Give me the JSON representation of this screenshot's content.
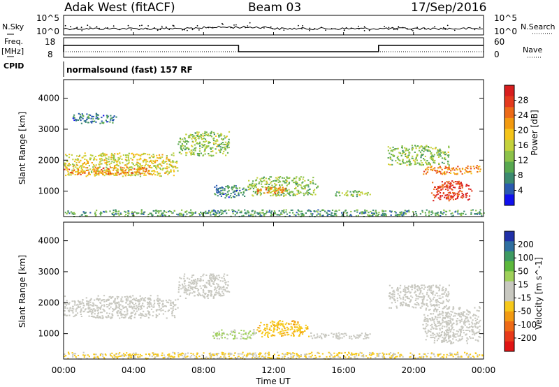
{
  "header": {
    "station": "Adak West (fitACF)",
    "beam": "Beam 03",
    "date": "17/Sep/2016"
  },
  "panels": {
    "nsky": {
      "label": "N.Sky",
      "left_ticks": [
        "10^5",
        "10^0"
      ],
      "right_ticks": [
        "10^5",
        "10^0"
      ],
      "right_label": "N.Search"
    },
    "freq": {
      "label_top": "Freq.",
      "label_unit": "[MHz]",
      "left_ticks": [
        "18",
        "8"
      ],
      "right_ticks": [
        "60",
        "0"
      ],
      "right_label": "Nave"
    },
    "cpid": {
      "label": "CPID",
      "text": "normalsound (fast) 157 RF"
    }
  },
  "colorbars": {
    "power": {
      "label": "Power [dB]",
      "ticks": [
        "28",
        "24",
        "20",
        "16",
        "12",
        "8",
        "4"
      ],
      "colors": [
        "#1010ee",
        "#2a5ab0",
        "#3c8a70",
        "#58a850",
        "#8cc24a",
        "#c4d23c",
        "#f4c41a",
        "#f29a10",
        "#ec6a18",
        "#e43a1e",
        "#d81e1e"
      ]
    },
    "velocity": {
      "label": "Velocity [m s^-1]",
      "ticks": [
        "200",
        "100",
        "50",
        "15",
        "-15",
        "-50",
        "-100",
        "-200"
      ],
      "colors": [
        "#2030a8",
        "#2f6fa0",
        "#3e9a62",
        "#5cb83c",
        "#9fd05a",
        "#c8c8c0",
        "#c8c8c0",
        "#f6c81a",
        "#f29a12",
        "#ee6a16",
        "#e83a1a",
        "#e01414"
      ]
    }
  },
  "chart_data": {
    "type": "heatmap",
    "x_axis": {
      "label": "Time UT",
      "ticks": [
        "00:00",
        "04:00",
        "08:00",
        "12:00",
        "16:00",
        "20:00",
        "00:00"
      ],
      "range_hours": [
        0,
        24
      ]
    },
    "y_axis": {
      "label": "Slant Range [km]",
      "ticks": [
        1000,
        2000,
        3000,
        4000
      ],
      "range": [
        180,
        4600
      ]
    },
    "series": [
      {
        "name": "Power",
        "blobs": [
          {
            "t": [
              0,
              6.5
            ],
            "r": [
              1500,
              2250
            ],
            "value_db": 16
          },
          {
            "t": [
              0,
              5
            ],
            "r": [
              1550,
              1800
            ],
            "value_db": 22
          },
          {
            "t": [
              6.5,
              9.5
            ],
            "r": [
              2150,
              2950
            ],
            "value_db": 12
          },
          {
            "t": [
              8.5,
              10.5
            ],
            "r": [
              800,
              1200
            ],
            "value_db": 6
          },
          {
            "t": [
              10.5,
              14.5
            ],
            "r": [
              850,
              1500
            ],
            "value_db": 12
          },
          {
            "t": [
              11,
              13
            ],
            "r": [
              950,
              1150
            ],
            "value_db": 22
          },
          {
            "t": [
              15.5,
              17.5
            ],
            "r": [
              850,
              1050
            ],
            "value_db": 12
          },
          {
            "t": [
              18.5,
              22
            ],
            "r": [
              1850,
              2500
            ],
            "value_db": 12
          },
          {
            "t": [
              20.5,
              23.8
            ],
            "r": [
              1550,
              1850
            ],
            "value_db": 22
          },
          {
            "t": [
              21,
              23.3
            ],
            "r": [
              700,
              1350
            ],
            "value_db": 28
          },
          {
            "t": [
              0.5,
              3
            ],
            "r": [
              3200,
              3550
            ],
            "value_db": 6
          },
          {
            "t": [
              0,
              24
            ],
            "r": [
              200,
              420
            ],
            "value_db": 8
          }
        ]
      },
      {
        "name": "Velocity",
        "blobs": [
          {
            "t": [
              0,
              6.5
            ],
            "r": [
              1500,
              2250
            ],
            "value_ms": 0
          },
          {
            "t": [
              6.5,
              9.5
            ],
            "r": [
              2150,
              2950
            ],
            "value_ms": 0
          },
          {
            "t": [
              8.5,
              11
            ],
            "r": [
              850,
              1150
            ],
            "value_ms": 40
          },
          {
            "t": [
              11,
              14
            ],
            "r": [
              900,
              1450
            ],
            "value_ms": -60
          },
          {
            "t": [
              14,
              17.5
            ],
            "r": [
              850,
              1050
            ],
            "value_ms": 10
          },
          {
            "t": [
              18.5,
              22
            ],
            "r": [
              1850,
              2600
            ],
            "value_ms": 0
          },
          {
            "t": [
              20.5,
              23.8
            ],
            "r": [
              700,
              1900
            ],
            "value_ms": 0
          },
          {
            "t": [
              0,
              24
            ],
            "r": [
              200,
              420
            ],
            "value_ms": -40
          }
        ]
      }
    ],
    "freq_trace": {
      "high_mhz_segments": [
        [
          0,
          10
        ],
        [
          18,
          24
        ]
      ],
      "low_segment": [
        10,
        18
      ]
    }
  }
}
